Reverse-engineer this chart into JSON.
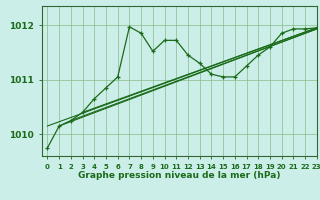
{
  "title": "Graphe pression niveau de la mer (hPa)",
  "background_color": "#cceee8",
  "plot_bg_color": "#cceee8",
  "grid_color": "#88bb88",
  "line_color": "#1a6b1a",
  "xlim": [
    -0.5,
    23
  ],
  "ylim": [
    1009.6,
    1012.35
  ],
  "yticks": [
    1010,
    1011,
    1012
  ],
  "xticks": [
    0,
    1,
    2,
    3,
    4,
    5,
    6,
    7,
    8,
    9,
    10,
    11,
    12,
    13,
    14,
    15,
    16,
    17,
    18,
    19,
    20,
    21,
    22,
    23
  ],
  "main_x": [
    0,
    1,
    2,
    3,
    4,
    5,
    6,
    7,
    8,
    9,
    10,
    11,
    12,
    13,
    14,
    15,
    16,
    17,
    18,
    19,
    20,
    21,
    22,
    23
  ],
  "main_y": [
    1009.75,
    1010.15,
    1010.25,
    1010.4,
    1010.65,
    1010.85,
    1011.05,
    1011.97,
    1011.85,
    1011.52,
    1011.72,
    1011.72,
    1011.45,
    1011.3,
    1011.1,
    1011.05,
    1011.05,
    1011.25,
    1011.45,
    1011.6,
    1011.85,
    1011.93,
    1011.93,
    1011.95
  ],
  "trend1_x": [
    0,
    23
  ],
  "trend1_y": [
    1010.15,
    1011.95
  ],
  "trend2_x": [
    1,
    23
  ],
  "trend2_y": [
    1010.15,
    1011.93
  ],
  "trend3_x": [
    2,
    23
  ],
  "trend3_y": [
    1010.25,
    1011.93
  ],
  "trend4_x": [
    3,
    23
  ],
  "trend4_y": [
    1010.4,
    1011.95
  ]
}
